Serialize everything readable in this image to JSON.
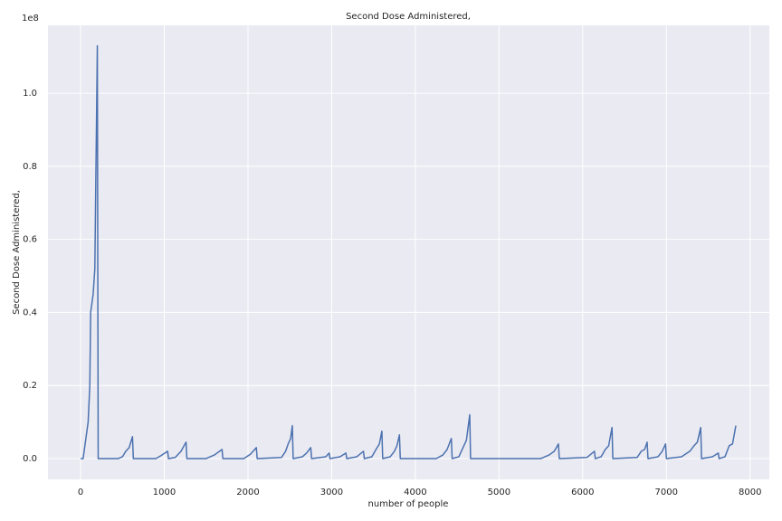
{
  "chart_data": {
    "type": "line",
    "title": "Second Dose Administered,",
    "xlabel": "number of people",
    "ylabel": "Second Dose Administered,",
    "y_offset_label": "1e8",
    "x": [
      0,
      30,
      60,
      90,
      110,
      120,
      150,
      170,
      200,
      210,
      450,
      500,
      540,
      580,
      620,
      630,
      900,
      960,
      1040,
      1050,
      1130,
      1200,
      1260,
      1270,
      1500,
      1600,
      1690,
      1700,
      1950,
      2030,
      2100,
      2110,
      2400,
      2450,
      2480,
      2510,
      2530,
      2540,
      2650,
      2700,
      2750,
      2760,
      2930,
      2970,
      2980,
      3100,
      3170,
      3180,
      3300,
      3380,
      3390,
      3480,
      3530,
      3570,
      3600,
      3610,
      3700,
      3750,
      3780,
      3810,
      3820,
      4250,
      4330,
      4380,
      4430,
      4440,
      4520,
      4570,
      4610,
      4650,
      4660,
      5500,
      5600,
      5660,
      5710,
      5720,
      6050,
      6140,
      6150,
      6220,
      6270,
      6310,
      6350,
      6360,
      6650,
      6700,
      6740,
      6770,
      6780,
      6900,
      6950,
      6990,
      7000,
      7180,
      7280,
      7330,
      7370,
      7410,
      7420,
      7550,
      7620,
      7630,
      7700,
      7750,
      7790,
      7830
    ],
    "series": [
      {
        "color": "#4c72b0",
        "values": [
          0.0,
          0.0,
          0.05,
          0.1,
          0.2,
          0.4,
          0.45,
          0.52,
          1.13,
          0.0,
          0.0,
          0.005,
          0.02,
          0.03,
          0.06,
          0.0,
          0.0,
          0.008,
          0.02,
          0.0,
          0.003,
          0.02,
          0.045,
          0.0,
          0.0,
          0.01,
          0.025,
          0.0,
          0.0,
          0.012,
          0.03,
          0.0,
          0.003,
          0.02,
          0.04,
          0.055,
          0.09,
          0.0,
          0.005,
          0.015,
          0.03,
          0.0,
          0.005,
          0.015,
          0.0,
          0.005,
          0.015,
          0.0,
          0.005,
          0.02,
          0.0,
          0.005,
          0.025,
          0.04,
          0.075,
          0.0,
          0.005,
          0.02,
          0.035,
          0.065,
          0.0,
          0.0,
          0.01,
          0.025,
          0.055,
          0.0,
          0.005,
          0.03,
          0.05,
          0.12,
          0.0,
          0.0,
          0.01,
          0.02,
          0.04,
          0.0,
          0.003,
          0.02,
          0.0,
          0.005,
          0.025,
          0.035,
          0.085,
          0.0,
          0.003,
          0.02,
          0.025,
          0.045,
          0.0,
          0.005,
          0.02,
          0.04,
          0.0,
          0.005,
          0.02,
          0.035,
          0.045,
          0.085,
          0.0,
          0.005,
          0.015,
          0.0,
          0.005,
          0.035,
          0.04,
          0.09
        ]
      }
    ],
    "xlim": [
      -390,
      8230
    ],
    "ylim": [
      -0.057,
      1.186
    ],
    "xticks": [
      0,
      1000,
      2000,
      3000,
      4000,
      5000,
      6000,
      7000,
      8000
    ],
    "yticks": [
      {
        "value": 0,
        "label": "0.0"
      },
      0.2,
      0.4,
      0.6,
      0.8,
      {
        "value": 1,
        "label": "1.0"
      }
    ],
    "grid": true
  }
}
